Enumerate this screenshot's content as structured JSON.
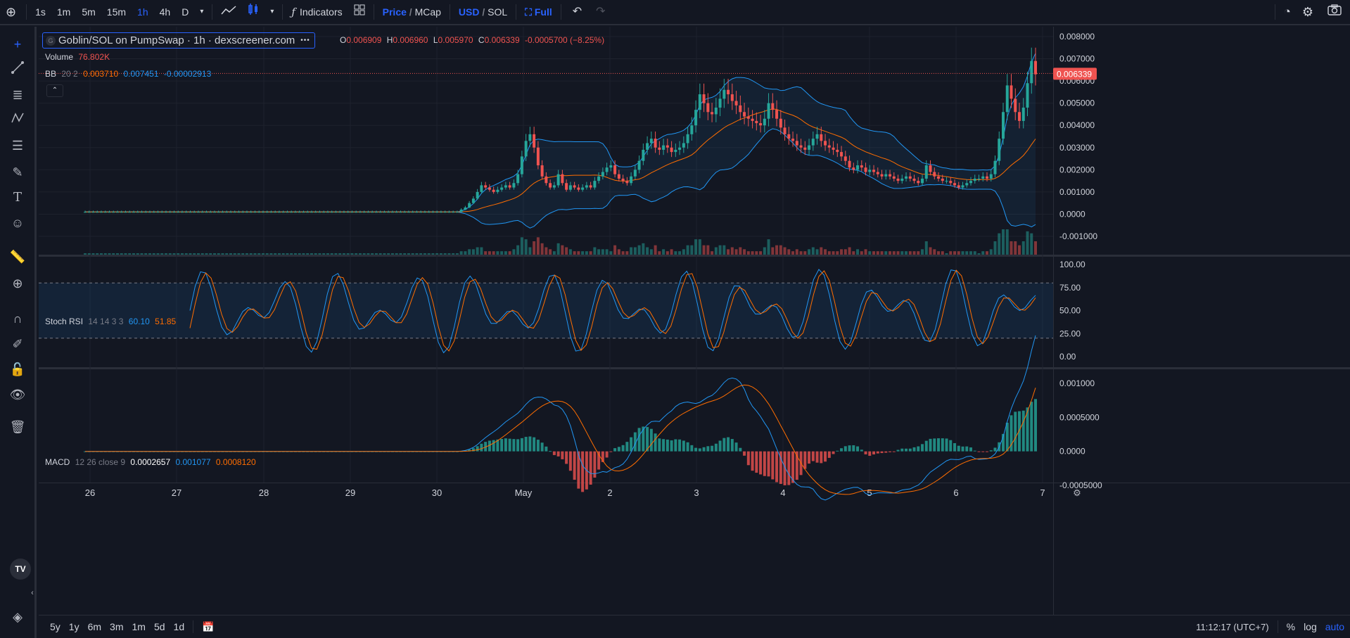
{
  "toolbar": {
    "timeframes": [
      "1s",
      "1m",
      "5m",
      "15m",
      "1h",
      "4h",
      "D"
    ],
    "active_timeframe": "1h",
    "indicators_label": "Indicators",
    "price_label": "Price",
    "mcap_label": "MCap",
    "usd_label": "USD",
    "sol_label": "SOL",
    "full_label": "Full",
    "slash": "/"
  },
  "pair": {
    "title": "Goblin/SOL on PumpSwap · 1h · dexscreener.com",
    "dots": "•••"
  },
  "ohlc": {
    "o_label": "O",
    "o": "0.006909",
    "h_label": "H",
    "h": "0.006960",
    "l_label": "L",
    "l": "0.005970",
    "c_label": "C",
    "c": "0.006339",
    "change": "-0.0005700 (−8.25%)"
  },
  "volume": {
    "label": "Volume",
    "value": "76.802K"
  },
  "bb": {
    "label": "BB",
    "params": "20 2",
    "v1": "0.003710",
    "v2": "0.007451",
    "v3": "-0.00002913"
  },
  "stoch": {
    "label": "Stoch RSI",
    "params": "14 14 3 3",
    "k": "60.10",
    "d": "51.85"
  },
  "macd": {
    "label": "MACD",
    "params": "12 26 close 9",
    "v1": "0.0002657",
    "v2": "0.001077",
    "v3": "0.0008120"
  },
  "last_price_tag": "0.006339",
  "price_axis": [
    "0.008000",
    "0.007000",
    "0.006000",
    "0.005000",
    "0.004000",
    "0.003000",
    "0.002000",
    "0.001000",
    "0.0000",
    "-0.001000"
  ],
  "stoch_axis": [
    "100.00",
    "75.00",
    "50.00",
    "25.00",
    "0.00"
  ],
  "macd_axis": [
    "0.001000",
    "0.0005000",
    "0.0000",
    "-0.0005000"
  ],
  "time_axis": [
    "26",
    "27",
    "28",
    "29",
    "30",
    "May",
    "2",
    "3",
    "4",
    "5",
    "6",
    "7"
  ],
  "bottom": {
    "ranges": [
      "5y",
      "1y",
      "6m",
      "3m",
      "1m",
      "5d",
      "1d"
    ],
    "clock": "11:12:17 (UTC+7)",
    "pct": "%",
    "log": "log",
    "auto": "auto"
  },
  "colors": {
    "up": "#26a69a",
    "down": "#ef5350",
    "blue": "#2962ff",
    "bb_line": "#2196f3",
    "orange": "#ff6d00",
    "bg": "#131722"
  },
  "chart_data": {
    "type": "candlestick",
    "series_close": [
      0.0001,
      0.0001,
      0.0001,
      0.0001,
      0.0001,
      0.0001,
      0.0001,
      0.0001,
      0.0001,
      0.0001,
      0.0001,
      0.0001,
      0.0001,
      0.0001,
      0.0001,
      0.0001,
      0.0001,
      0.0001,
      0.0001,
      0.0001,
      0.0001,
      0.0001,
      0.0001,
      0.0001,
      0.0001,
      0.0001,
      0.0001,
      0.0001,
      0.0001,
      0.0001,
      0.0001,
      0.0001,
      0.0001,
      0.0001,
      0.0001,
      0.0001,
      0.0001,
      0.0001,
      0.0001,
      0.0001,
      0.0001,
      0.0001,
      0.0001,
      0.0001,
      0.0001,
      0.0001,
      0.0001,
      0.0001,
      0.0001,
      0.0001,
      0.0001,
      0.0001,
      0.0001,
      0.0001,
      0.0001,
      0.0001,
      0.0001,
      0.0001,
      0.0001,
      0.0001,
      0.0001,
      0.0001,
      0.0001,
      0.0001,
      0.0001,
      0.0001,
      0.0001,
      0.0001,
      0.0001,
      0.0001,
      0.0001,
      0.0001,
      0.0001,
      0.0001,
      0.0001,
      0.0001,
      0.0001,
      0.0001,
      0.0001,
      0.0001,
      0.0001,
      0.0001,
      0.0001,
      0.0001,
      0.0001,
      0.0001,
      0.0001,
      0.0001,
      0.0001,
      0.0001,
      0.0001,
      0.0001,
      0.0001,
      0.0002,
      0.0003,
      0.0005,
      0.0007,
      0.001,
      0.0013,
      0.0012,
      0.0011,
      0.001,
      0.0011,
      0.0012,
      0.0013,
      0.0012,
      0.0014,
      0.0018,
      0.0026,
      0.0033,
      0.0036,
      0.003,
      0.0022,
      0.0017,
      0.0014,
      0.0012,
      0.0013,
      0.0018,
      0.0014,
      0.0011,
      0.0013,
      0.0012,
      0.0011,
      0.0012,
      0.0013,
      0.0012,
      0.0015,
      0.0017,
      0.0019,
      0.0021,
      0.0022,
      0.0018,
      0.0016,
      0.0015,
      0.0014,
      0.0017,
      0.002,
      0.0024,
      0.0029,
      0.0032,
      0.0034,
      0.003,
      0.0029,
      0.0031,
      0.003,
      0.0028,
      0.0029,
      0.003,
      0.0032,
      0.0036,
      0.004,
      0.0047,
      0.0054,
      0.005,
      0.0046,
      0.0045,
      0.0048,
      0.0052,
      0.0056,
      0.0054,
      0.0051,
      0.0049,
      0.0046,
      0.0044,
      0.0043,
      0.0042,
      0.0041,
      0.004,
      0.0043,
      0.005,
      0.0047,
      0.0043,
      0.0039,
      0.0036,
      0.0034,
      0.0033,
      0.0031,
      0.003,
      0.0029,
      0.0031,
      0.0034,
      0.0036,
      0.0033,
      0.0031,
      0.003,
      0.0029,
      0.0028,
      0.0026,
      0.0024,
      0.0021,
      0.002,
      0.0022,
      0.0021,
      0.0019,
      0.002,
      0.0019,
      0.0018,
      0.0017,
      0.0018,
      0.0017,
      0.0016,
      0.0015,
      0.0016,
      0.0017,
      0.0016,
      0.0015,
      0.0014,
      0.0016,
      0.0022,
      0.0019,
      0.0017,
      0.0016,
      0.0015,
      0.0015,
      0.0014,
      0.0013,
      0.0012,
      0.0013,
      0.0014,
      0.0015,
      0.0016,
      0.0016,
      0.0017,
      0.0016,
      0.0018,
      0.0024,
      0.0034,
      0.0046,
      0.0058,
      0.0052,
      0.0046,
      0.0042,
      0.0048,
      0.0059,
      0.0069,
      0.0063
    ],
    "ylim": [
      -0.0015,
      0.0085
    ],
    "x_ticks": [
      "26",
      "27",
      "28",
      "29",
      "30",
      "May",
      "2",
      "3",
      "4",
      "5",
      "6",
      "7"
    ]
  }
}
